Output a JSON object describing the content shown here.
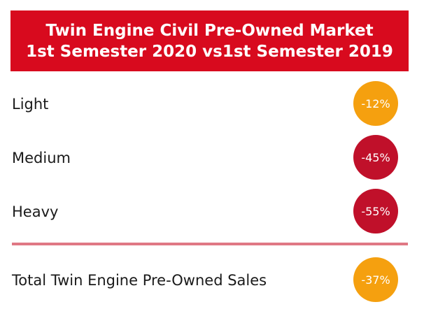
{
  "header": {
    "title_line1": "Twin Engine Civil Pre-Owned Market",
    "title_line2": "1st Semester 2020 vs1st Semester 2019",
    "background": "#d80a1e"
  },
  "rows": [
    {
      "label": "Light",
      "value": "-12%",
      "color": "#f5a00f"
    },
    {
      "label": "Medium",
      "value": "-45%",
      "color": "#c0102a"
    },
    {
      "label": "Heavy",
      "value": "-55%",
      "color": "#c0102a"
    }
  ],
  "total": {
    "label": "Total Twin Engine Pre-Owned Sales",
    "value": "-37%",
    "color": "#f5a00f"
  },
  "divider_color": "#e07884"
}
